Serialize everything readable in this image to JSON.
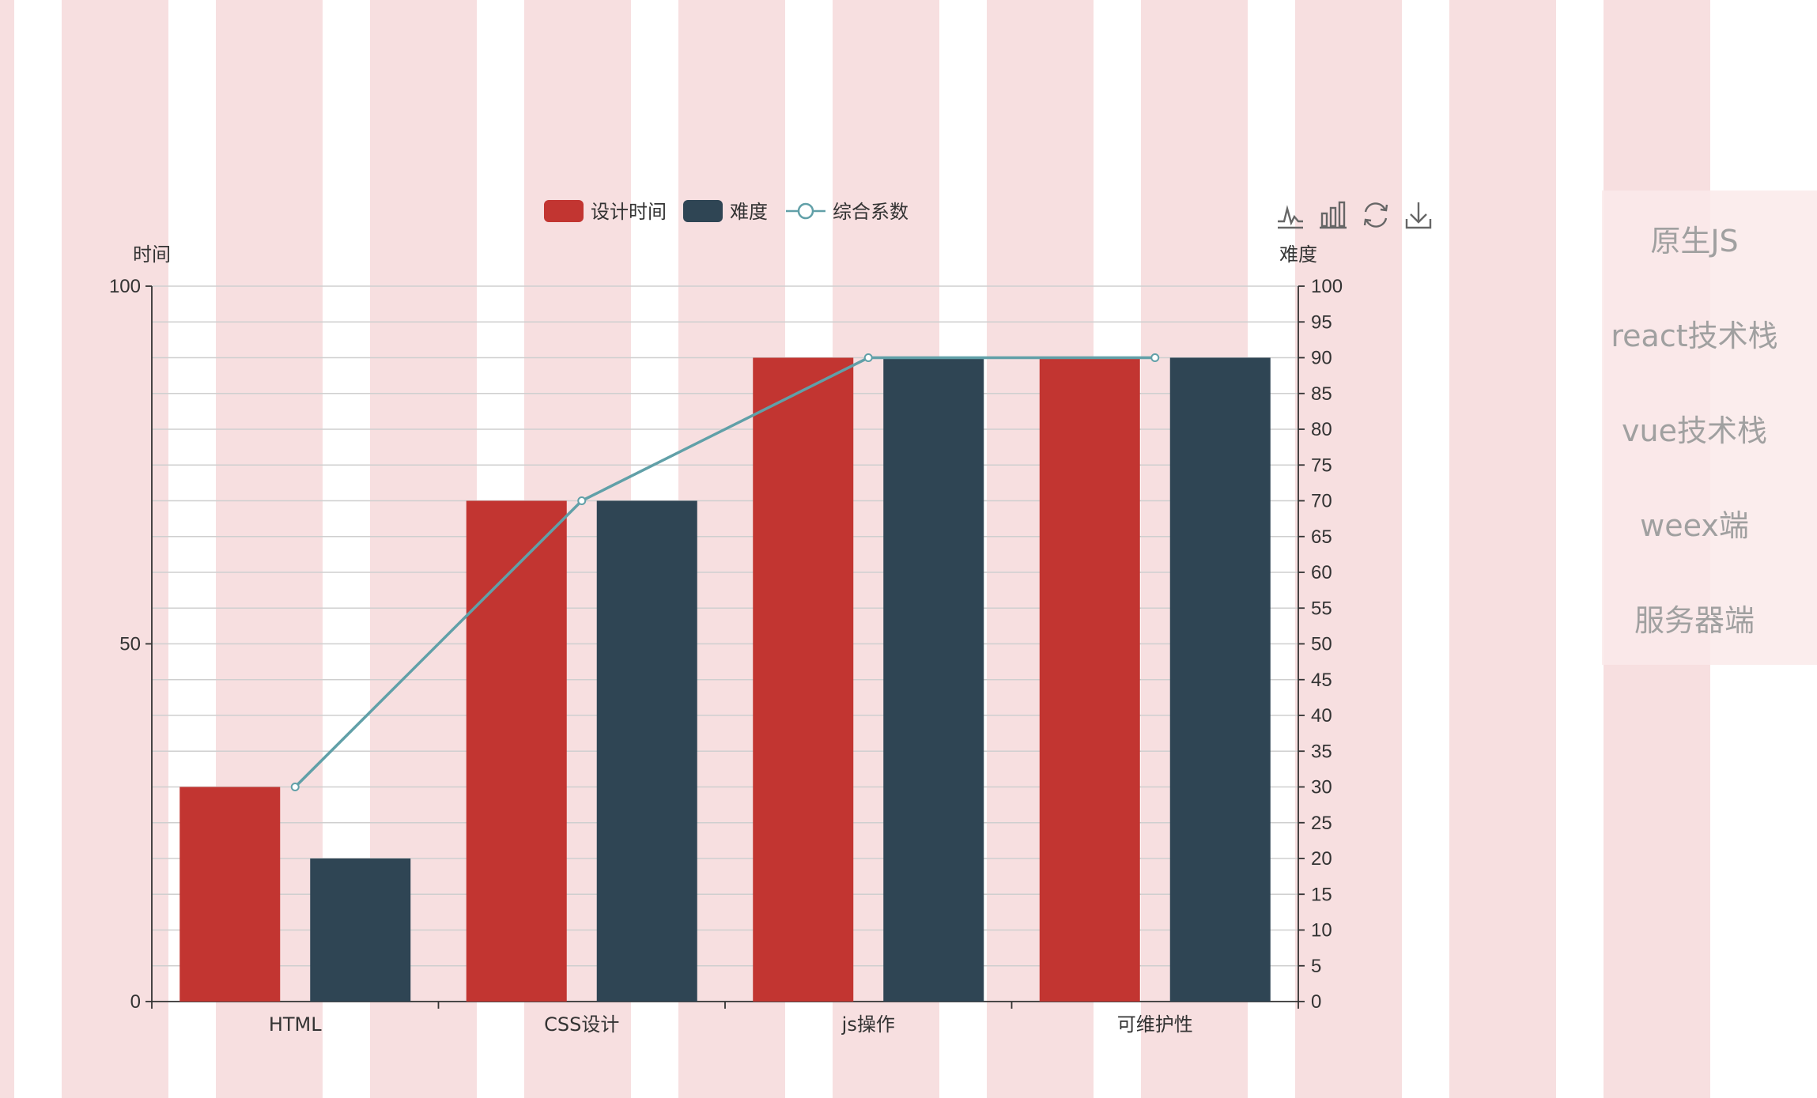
{
  "background": {
    "stripe_color": "#f7dfe0",
    "base_color": "#ffffff"
  },
  "chart_data": {
    "type": "bar",
    "categories": [
      "HTML",
      "CSS设计",
      "js操作",
      "可维护性"
    ],
    "series": [
      {
        "name": "设计时间",
        "type": "bar",
        "axis": "left",
        "color": "#c23531",
        "values": [
          30,
          70,
          90,
          90
        ]
      },
      {
        "name": "难度",
        "type": "bar",
        "axis": "right",
        "color": "#2f4554",
        "values": [
          20,
          70,
          90,
          90
        ]
      },
      {
        "name": "综合系数",
        "type": "line",
        "axis": "left",
        "color": "#61a0a8",
        "values": [
          30,
          70,
          90,
          90
        ]
      }
    ],
    "left_axis": {
      "label": "时间",
      "min": 0,
      "max": 100,
      "ticks": [
        0,
        50,
        100
      ]
    },
    "right_axis": {
      "label": "难度",
      "min": 0,
      "max": 100,
      "ticks": [
        0,
        5,
        10,
        15,
        20,
        25,
        30,
        35,
        40,
        45,
        50,
        55,
        60,
        65,
        70,
        75,
        80,
        85,
        90,
        95,
        100
      ]
    },
    "grid": true,
    "legend_position": "top-center"
  },
  "toolbox": {
    "icons": [
      "line-chart-icon",
      "bar-chart-icon",
      "refresh-icon",
      "download-icon"
    ]
  },
  "side_menu": {
    "items": [
      {
        "label": "原生JS"
      },
      {
        "label": "react技术栈"
      },
      {
        "label": "vue技术栈"
      },
      {
        "label": "weex端"
      },
      {
        "label": "服务器端"
      }
    ]
  }
}
